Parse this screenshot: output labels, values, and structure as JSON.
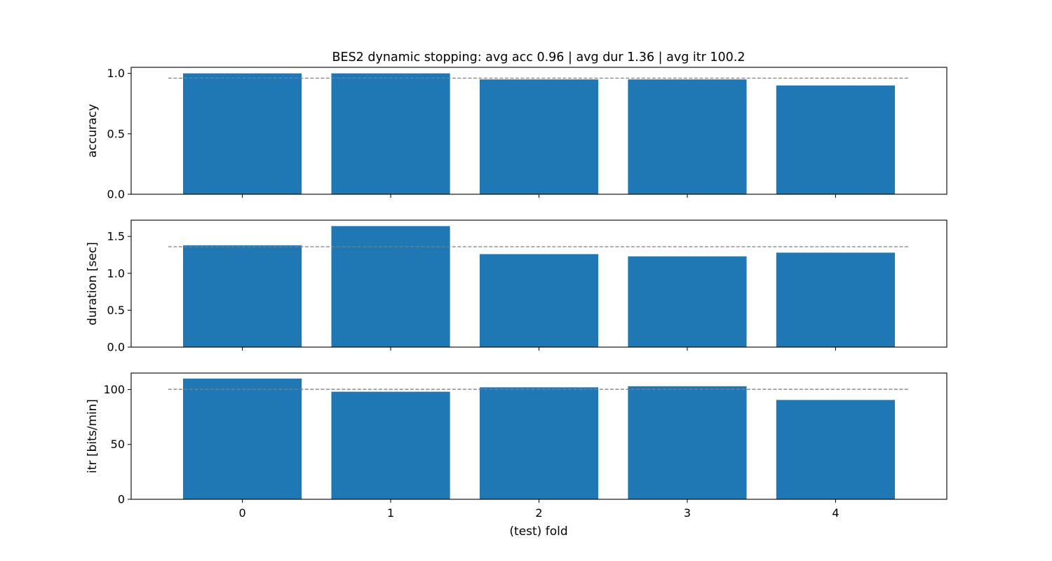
{
  "chart_data": {
    "type": "bar",
    "title": "BES2 dynamic stopping: avg acc 0.96 | avg dur 1.36 | avg itr 100.2",
    "xlabel": "(test) fold",
    "categories": [
      "0",
      "1",
      "2",
      "3",
      "4"
    ],
    "xlim": [
      -0.75,
      4.75
    ],
    "grid": false,
    "bar_color": "#1f77b4",
    "mean_line_color": "#808080",
    "panels": [
      {
        "ylabel": "accuracy",
        "values": [
          1.0,
          1.0,
          0.95,
          0.95,
          0.9
        ],
        "mean": 0.96,
        "ylim": [
          0,
          1.05
        ],
        "yticks": [
          0.0,
          0.5,
          1.0
        ],
        "ytick_labels": [
          "0.0",
          "0.5",
          "1.0"
        ]
      },
      {
        "ylabel": "duration [sec]",
        "values": [
          1.38,
          1.64,
          1.26,
          1.23,
          1.28
        ],
        "mean": 1.36,
        "ylim": [
          0,
          1.72
        ],
        "yticks": [
          0.0,
          0.5,
          1.0,
          1.5
        ],
        "ytick_labels": [
          "0.0",
          "0.5",
          "1.0",
          "1.5"
        ]
      },
      {
        "ylabel": "itr [bits/min]",
        "values": [
          110,
          98,
          102,
          103,
          90.5
        ],
        "mean": 100.2,
        "ylim": [
          0,
          115
        ],
        "yticks": [
          0,
          50,
          100
        ],
        "ytick_labels": [
          "0",
          "50",
          "100"
        ]
      }
    ]
  }
}
